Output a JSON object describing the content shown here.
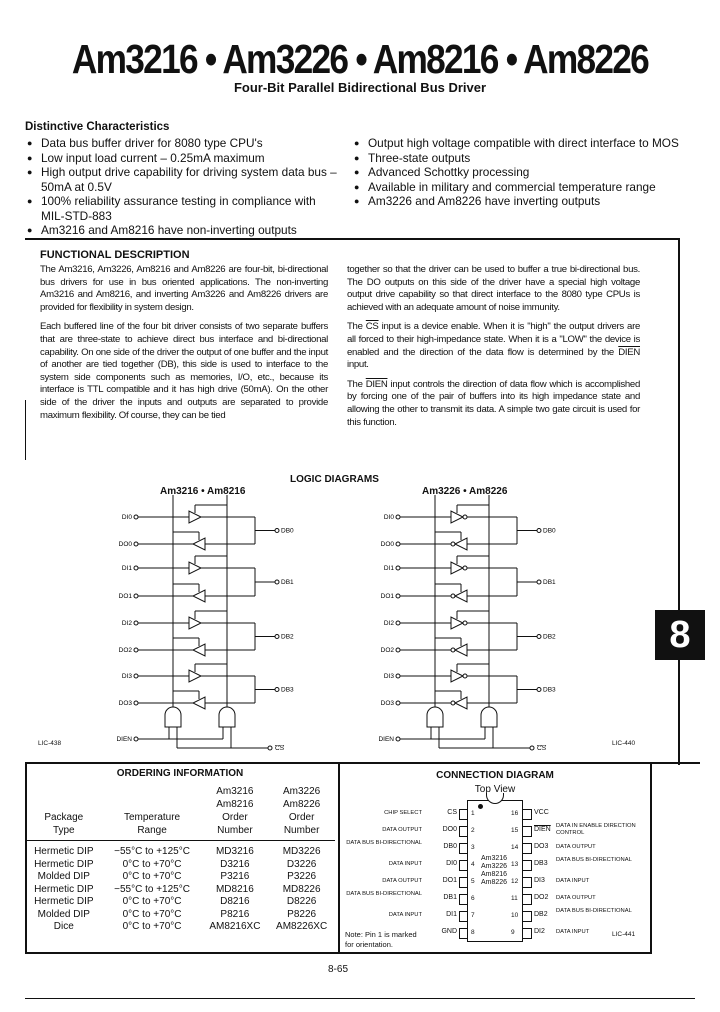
{
  "header": {
    "title": "Am3216 • Am3226 • Am8216 • Am8226",
    "subtitle": "Four-Bit Parallel Bidirectional Bus Driver"
  },
  "distinctive": {
    "heading": "Distinctive Characteristics",
    "left": [
      "Data bus buffer driver for 8080 type CPU's",
      "Low input load current – 0.25mA maximum",
      "High output drive capability for driving system data bus – 50mA at 0.5V",
      "100% reliability assurance testing in compliance with MIL-STD-883",
      "Am3216 and Am8216 have non-inverting outputs"
    ],
    "right": [
      "Output high voltage compatible with direct interface to MOS",
      "Three-state outputs",
      "Advanced Schottky processing",
      "Available in military and commercial temperature range",
      "Am3226 and Am8226 have inverting outputs"
    ]
  },
  "functional": {
    "heading": "FUNCTIONAL DESCRIPTION",
    "p1": "The Am3216, Am3226, Am8216 and Am8226 are four-bit, bi-directional bus drivers for use in bus oriented applications. The non-inverting Am3216 and Am8216, and inverting Am3226 and Am8226 drivers are provided for flexibility in system design.",
    "p2": "Each buffered line of the four bit driver consists of two separate buffers that are three-state to achieve direct bus interface and bi-directional capability. On one side of the driver the output of one buffer and the input of another are tied together (DB), this side is used to interface to the system side components such as memories, I/O, etc., because its interface is TTL compatible and it has high drive (50mA). On the other side of the driver the inputs and outputs are separated to provide maximum flexibility. Of course, they can be tied",
    "p3": "together so that the driver can be used to buffer a true bi-directional bus. The DO outputs on this side of the driver have a special high voltage output drive capability so that direct interface to the 8080 type CPUs is achieved with an adequate amount of noise immunity.",
    "p4_a": "The ",
    "p4_cs": "CS",
    "p4_b": " input is a device enable. When it is \"high\" the output drivers are all forced to their high-impedance state. When it is a \"LOW\" the device is enabled and the direction of the data flow is determined by the ",
    "p4_dien": "DIEN",
    "p4_c": " input.",
    "p5_a": "The ",
    "p5_dien": "DIEN",
    "p5_b": " input controls the direction of data flow which is accomplished by forcing one of the pair of buffers into its high impedance state and allowing the other to transmit its data. A simple two gate circuit is used for this function."
  },
  "logic": {
    "heading": "LOGIC DIAGRAMS",
    "left_title": "Am3216 • Am8216",
    "right_title": "Am3226 • Am8226",
    "left_ref": "LIC-438",
    "right_ref": "LIC-440",
    "inputs": [
      "DI0",
      "DO0",
      "DI1",
      "DO1",
      "DI2",
      "DO2",
      "DI3",
      "DO3"
    ],
    "bus": [
      "DB0",
      "DB1",
      "DB2",
      "DB3"
    ],
    "dien": "DIEN",
    "cs": "CS"
  },
  "tab": "8",
  "ordering": {
    "heading": "ORDERING INFORMATION",
    "col_headers": [
      [
        "",
        "",
        "Am3216",
        "Am3226"
      ],
      [
        "",
        "",
        "Am8216",
        "Am8226"
      ],
      [
        "Package",
        "Temperature",
        "Order",
        "Order"
      ],
      [
        "Type",
        "Range",
        "Number",
        "Number"
      ]
    ],
    "rows": [
      [
        "Hermetic DIP",
        "−55°C to +125°C",
        "MD3216",
        "MD3226"
      ],
      [
        "Hermetic DIP",
        "0°C to +70°C",
        "D3216",
        "D3226"
      ],
      [
        "Molded DIP",
        "0°C to +70°C",
        "P3216",
        "P3226"
      ],
      [
        "Hermetic DIP",
        "−55°C to +125°C",
        "MD8216",
        "MD8226"
      ],
      [
        "Hermetic DIP",
        "0°C to +70°C",
        "D8216",
        "D8226"
      ],
      [
        "Molded DIP",
        "0°C to +70°C",
        "P8216",
        "P8226"
      ],
      [
        "Dice",
        "0°C to +70°C",
        "AM8216XC",
        "AM8226XC"
      ]
    ]
  },
  "connection": {
    "heading": "CONNECTION DIAGRAM",
    "subheading": "Top View",
    "chip_labels": [
      "Am3216",
      "Am3226",
      "Am8216",
      "Am8226"
    ],
    "left_pins": [
      {
        "num": "1",
        "sym": "CS",
        "desc": "CHIP SELECT"
      },
      {
        "num": "2",
        "sym": "DO0",
        "desc": "DATA OUTPUT"
      },
      {
        "num": "3",
        "sym": "DB0",
        "desc": "DATA BUS BI-DIRECTIONAL"
      },
      {
        "num": "4",
        "sym": "DI0",
        "desc": "DATA INPUT"
      },
      {
        "num": "5",
        "sym": "DO1",
        "desc": "DATA OUTPUT"
      },
      {
        "num": "6",
        "sym": "DB1",
        "desc": "DATA BUS BI-DIRECTIONAL"
      },
      {
        "num": "7",
        "sym": "DI1",
        "desc": "DATA INPUT"
      },
      {
        "num": "8",
        "sym": "GND",
        "desc": ""
      }
    ],
    "right_pins": [
      {
        "num": "16",
        "sym": "VCC",
        "desc": ""
      },
      {
        "num": "15",
        "sym": "DIEN",
        "desc": "DATA IN ENABLE DIRECTION CONTROL"
      },
      {
        "num": "14",
        "sym": "DO3",
        "desc": "DATA OUTPUT"
      },
      {
        "num": "13",
        "sym": "DB3",
        "desc": "DATA BUS BI-DIRECTIONAL"
      },
      {
        "num": "12",
        "sym": "DI3",
        "desc": "DATA INPUT"
      },
      {
        "num": "11",
        "sym": "DO2",
        "desc": "DATA OUTPUT"
      },
      {
        "num": "10",
        "sym": "DB2",
        "desc": "DATA BUS BI-DIRECTIONAL"
      },
      {
        "num": "9",
        "sym": "DI2",
        "desc": "DATA INPUT"
      }
    ],
    "note": "Note: Pin 1 is marked for orientation.",
    "ref": "LIC-441"
  },
  "footer": {
    "page": "8-65"
  }
}
